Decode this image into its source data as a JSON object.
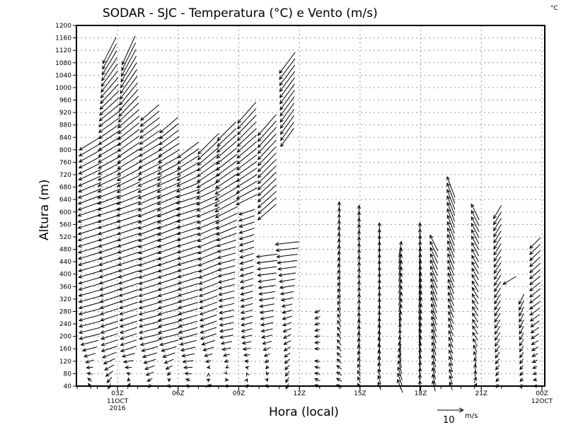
{
  "chart_data": {
    "type": "vector",
    "title": "SODAR - SJC - Temperatura (°C) e Vento (m/s)",
    "corner_unit": "°C",
    "xlabel": "Hora (local)",
    "ylabel": "Altura (m)",
    "xlim_hours": [
      1,
      24
    ],
    "ylim": [
      40,
      1200
    ],
    "y_ticks": [
      40,
      80,
      120,
      160,
      200,
      240,
      280,
      320,
      360,
      400,
      440,
      480,
      520,
      560,
      600,
      640,
      680,
      720,
      760,
      800,
      840,
      880,
      920,
      960,
      1000,
      1040,
      1080,
      1120,
      1160,
      1200
    ],
    "x_ticks": [
      {
        "hour": 3,
        "label": "03Z",
        "sub1": "11OCT",
        "sub2": "2016"
      },
      {
        "hour": 6,
        "label": "06Z"
      },
      {
        "hour": 9,
        "label": "09Z"
      },
      {
        "hour": 12,
        "label": "12Z"
      },
      {
        "hour": 15,
        "label": "15Z"
      },
      {
        "hour": 18,
        "label": "18Z"
      },
      {
        "hour": 21,
        "label": "21Z"
      },
      {
        "hour": 24,
        "label": "00Z",
        "sub1": "12OCT"
      }
    ],
    "grid": true,
    "legend": {
      "position": "bottom-right",
      "value": "10",
      "unit": "m/s",
      "reference_speed": 10
    },
    "level_step_m": 20,
    "columns": [
      {
        "hour": 1.63,
        "ranges": [
          [
            40,
            830
          ]
        ],
        "nodes": [
          [
            40,
            -1,
            2
          ],
          [
            120,
            -3,
            -1
          ],
          [
            200,
            -8,
            -2
          ],
          [
            600,
            -9,
            -3
          ],
          [
            830,
            -8,
            -5
          ]
        ]
      },
      {
        "hour": 2.6,
        "ranges": [
          [
            40,
            1120
          ]
        ],
        "nodes": [
          [
            40,
            -1,
            -2
          ],
          [
            160,
            -6,
            -2
          ],
          [
            600,
            -9,
            -3
          ],
          [
            900,
            -8,
            -6
          ],
          [
            1120,
            -5,
            -10
          ]
        ]
      },
      {
        "hour": 3.55,
        "ranges": [
          [
            40,
            1120
          ]
        ],
        "nodes": [
          [
            40,
            1,
            2
          ],
          [
            160,
            -6,
            -2
          ],
          [
            600,
            -9,
            -3
          ],
          [
            900,
            -8,
            -7
          ],
          [
            1120,
            -5,
            -11
          ]
        ]
      },
      {
        "hour": 4.6,
        "ranges": [
          [
            40,
            920
          ]
        ],
        "nodes": [
          [
            40,
            -1,
            -1
          ],
          [
            200,
            -8,
            -2
          ],
          [
            700,
            -9,
            -4
          ],
          [
            920,
            -7,
            -6
          ]
        ]
      },
      {
        "hour": 5.55,
        "ranges": [
          [
            40,
            880
          ]
        ],
        "nodes": [
          [
            40,
            1,
            -1
          ],
          [
            200,
            -8,
            -2
          ],
          [
            700,
            -9,
            -4
          ],
          [
            880,
            -7,
            -6
          ]
        ]
      },
      {
        "hour": 6.5,
        "ranges": [
          [
            40,
            800
          ]
        ],
        "nodes": [
          [
            40,
            -1,
            1
          ],
          [
            200,
            -7,
            -2
          ],
          [
            650,
            -9,
            -3
          ],
          [
            800,
            -8,
            -6
          ]
        ]
      },
      {
        "hour": 7.5,
        "ranges": [
          [
            40,
            820
          ]
        ],
        "nodes": [
          [
            40,
            2,
            1
          ],
          [
            200,
            -6,
            -2
          ],
          [
            650,
            -9,
            -4
          ],
          [
            820,
            -8,
            -8
          ]
        ]
      },
      {
        "hour": 8.4,
        "ranges": [
          [
            40,
            860
          ]
        ],
        "nodes": [
          [
            40,
            2,
            0
          ],
          [
            200,
            -5,
            -1
          ],
          [
            480,
            -7,
            -2
          ],
          [
            640,
            -9,
            -5
          ],
          [
            860,
            -7,
            -7
          ]
        ]
      },
      {
        "hour": 9.4,
        "ranges": [
          [
            40,
            600
          ],
          [
            640,
            920
          ]
        ],
        "nodes": [
          [
            40,
            1,
            1
          ],
          [
            200,
            -4,
            -1
          ],
          [
            600,
            -6,
            -2
          ],
          [
            640,
            -8,
            -4
          ],
          [
            920,
            -7,
            -8
          ]
        ]
      },
      {
        "hour": 10.4,
        "ranges": [
          [
            40,
            460
          ],
          [
            600,
            880
          ]
        ],
        "nodes": [
          [
            40,
            1,
            -1
          ],
          [
            200,
            -4,
            -1
          ],
          [
            460,
            -8,
            -1
          ],
          [
            600,
            -7,
            -6
          ],
          [
            880,
            -7,
            -8
          ]
        ]
      },
      {
        "hour": 11.4,
        "ranges": [
          [
            40,
            500
          ],
          [
            840,
            1080
          ]
        ],
        "nodes": [
          [
            40,
            -1,
            -2
          ],
          [
            300,
            -4,
            -1
          ],
          [
            500,
            -9,
            -1
          ],
          [
            840,
            -5,
            -7
          ],
          [
            1080,
            -6,
            -8
          ]
        ]
      },
      {
        "hour": 12.9,
        "ranges": [
          [
            40,
            120
          ],
          [
            160,
            280
          ]
        ],
        "nodes": [
          [
            40,
            -2,
            1
          ],
          [
            280,
            -2,
            -1
          ]
        ]
      },
      {
        "hour": 13.97,
        "ranges": [
          [
            40,
            620
          ]
        ],
        "nodes": [
          [
            40,
            -2,
            1
          ],
          [
            300,
            -1,
            3
          ],
          [
            620,
            0,
            3
          ]
        ]
      },
      {
        "hour": 14.95,
        "ranges": [
          [
            40,
            600
          ]
        ],
        "nodes": [
          [
            40,
            -1,
            2
          ],
          [
            300,
            0,
            4
          ],
          [
            600,
            0,
            5
          ]
        ]
      },
      {
        "hour": 15.96,
        "ranges": [
          [
            40,
            540
          ]
        ],
        "nodes": [
          [
            40,
            -1,
            3
          ],
          [
            300,
            0,
            5
          ],
          [
            540,
            0,
            6
          ]
        ]
      },
      {
        "hour": 16.98,
        "ranges": [
          [
            40,
            490
          ]
        ],
        "nodes": [
          [
            40,
            -2,
            5
          ],
          [
            300,
            1,
            5
          ],
          [
            490,
            1,
            6
          ]
        ]
      },
      {
        "hour": 17.96,
        "ranges": [
          [
            40,
            540
          ]
        ],
        "nodes": [
          [
            40,
            0,
            4
          ],
          [
            300,
            1,
            6
          ],
          [
            540,
            0,
            6
          ]
        ]
      },
      {
        "hour": 18.66,
        "ranges": [
          [
            40,
            500
          ]
        ],
        "nodes": [
          [
            40,
            -1,
            4
          ],
          [
            300,
            -2,
            6
          ],
          [
            500,
            -3,
            6
          ]
        ]
      },
      {
        "hour": 19.5,
        "ranges": [
          [
            40,
            690
          ]
        ],
        "nodes": [
          [
            40,
            -1,
            3
          ],
          [
            300,
            -2,
            5
          ],
          [
            690,
            -3,
            8
          ]
        ]
      },
      {
        "hour": 20.7,
        "ranges": [
          [
            40,
            600
          ]
        ],
        "nodes": [
          [
            40,
            1,
            2
          ],
          [
            200,
            -2,
            3
          ],
          [
            600,
            -3,
            6
          ]
        ]
      },
      {
        "hour": 21.8,
        "ranges": [
          [
            40,
            600
          ]
        ],
        "nodes": [
          [
            40,
            -1,
            -1
          ],
          [
            200,
            -2,
            -3
          ],
          [
            600,
            -3,
            -5
          ]
        ]
      },
      {
        "hour": 22.4,
        "ranges": [
          [
            380,
            380
          ]
        ],
        "nodes": [
          [
            380,
            -5,
            -3
          ]
        ]
      },
      {
        "hour": 22.99,
        "ranges": [
          [
            40,
            330
          ]
        ],
        "nodes": [
          [
            40,
            -1,
            -1
          ],
          [
            330,
            -2,
            -4
          ]
        ]
      },
      {
        "hour": 23.66,
        "ranges": [
          [
            40,
            500
          ]
        ],
        "nodes": [
          [
            40,
            -1,
            0
          ],
          [
            300,
            -4,
            -3
          ],
          [
            500,
            -4,
            -4
          ]
        ]
      }
    ]
  }
}
